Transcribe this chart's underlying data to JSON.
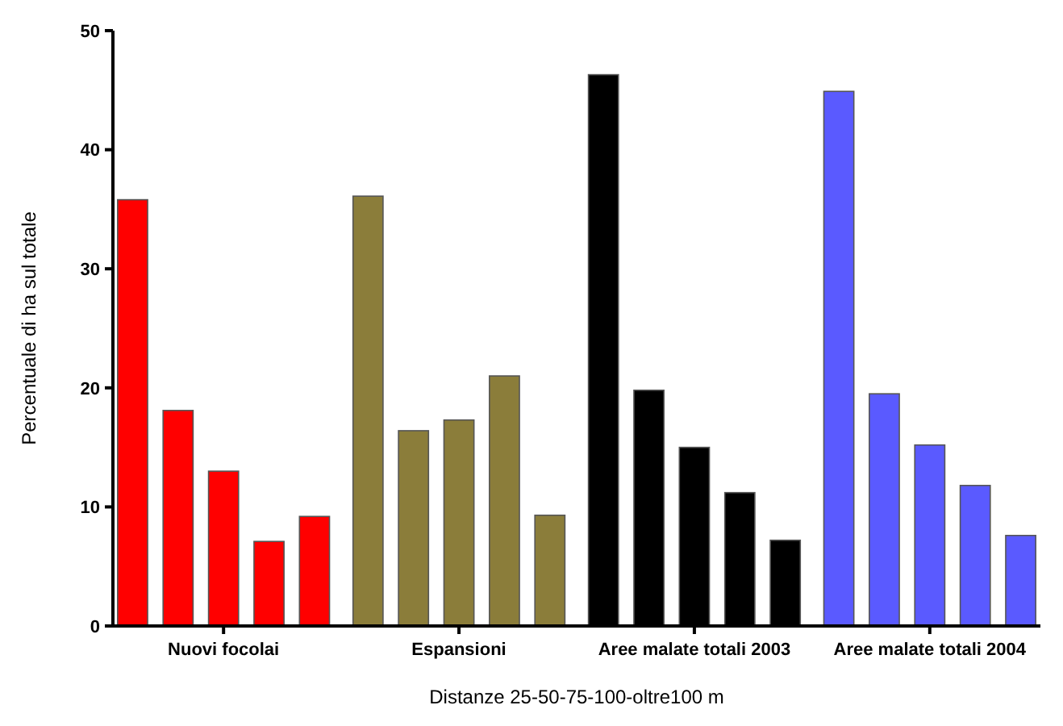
{
  "chart_data": {
    "type": "bar",
    "xlabel": "Distanze 25-50-75-100-oltre100 m",
    "ylabel": "Percentuale di ha sul totale",
    "categories": [
      "Nuovi focolai",
      "Espansioni",
      "Aree malate totali 2003",
      "Aree malate totali 2004"
    ],
    "series": [
      {
        "colors": [
          "#ff0000",
          "#8b7d3a",
          "#000000",
          "#5a5aff"
        ],
        "values": [
          35.8,
          36.1,
          46.3,
          44.9
        ]
      },
      {
        "colors": [
          "#ff0000",
          "#8b7d3a",
          "#000000",
          "#5a5aff"
        ],
        "values": [
          18.1,
          16.4,
          19.8,
          19.5
        ]
      },
      {
        "colors": [
          "#ff0000",
          "#8b7d3a",
          "#000000",
          "#5a5aff"
        ],
        "values": [
          13,
          17.3,
          15,
          15.2
        ]
      },
      {
        "colors": [
          "#ff0000",
          "#8b7d3a",
          "#000000",
          "#5a5aff"
        ],
        "values": [
          7.1,
          21,
          11.2,
          11.8
        ]
      },
      {
        "colors": [
          "#ff0000",
          "#8b7d3a",
          "#000000",
          "#5a5aff"
        ],
        "values": [
          9.2,
          9.3,
          7.2,
          7.6
        ]
      }
    ],
    "ylim": [
      0,
      50
    ],
    "yticks": [
      0,
      10,
      20,
      30,
      40,
      50
    ]
  }
}
